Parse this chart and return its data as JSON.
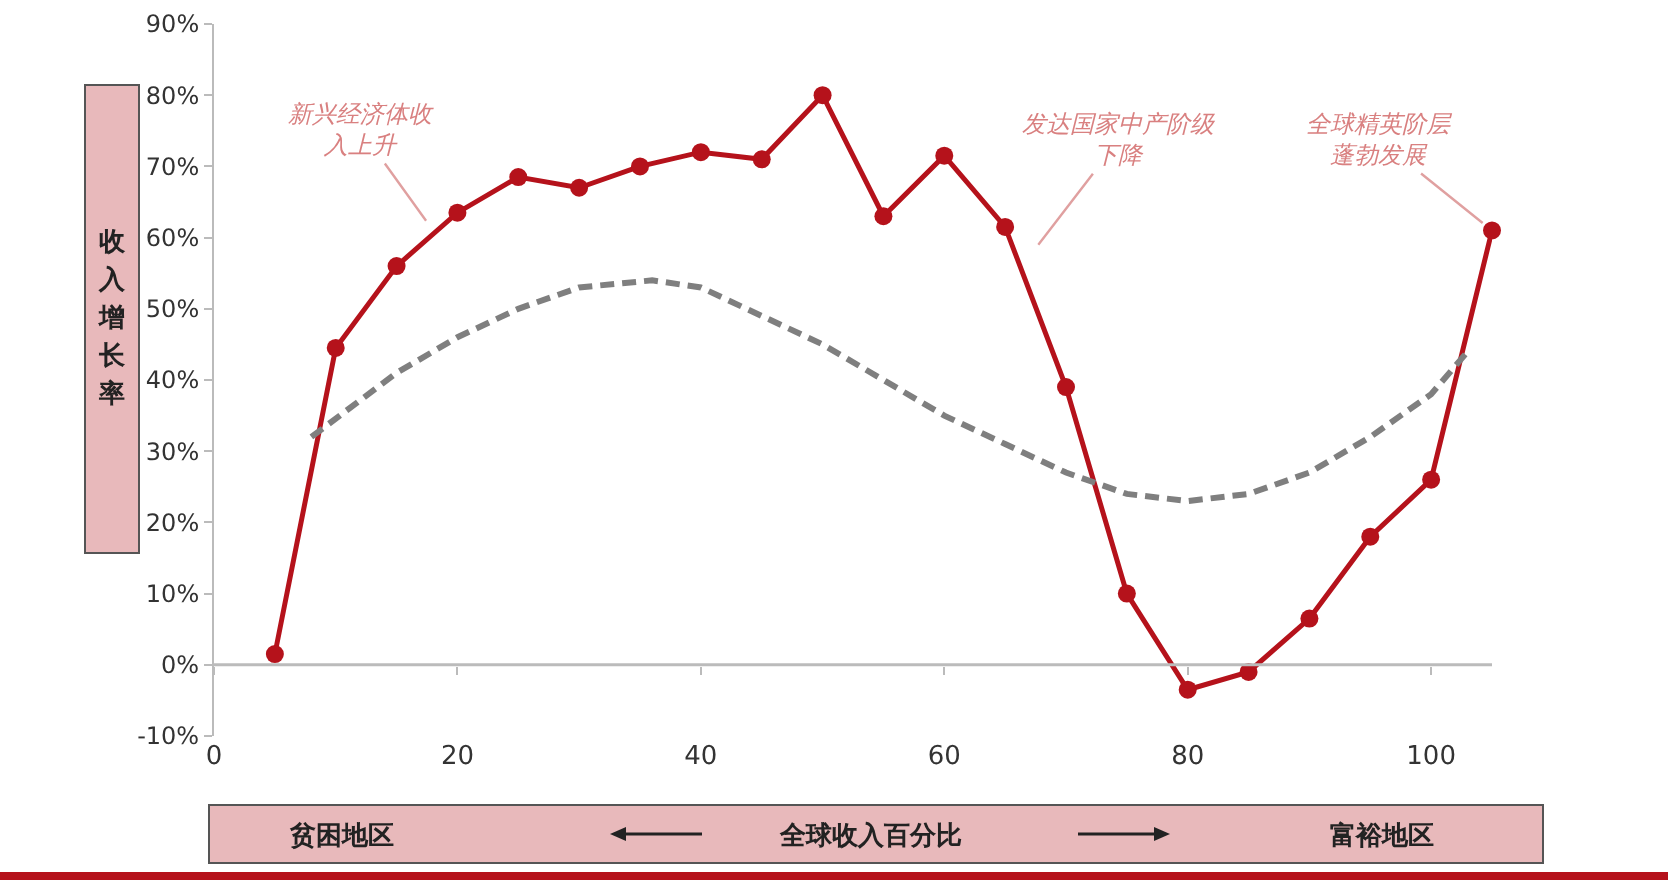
{
  "chart_data": {
    "type": "line",
    "xlabel": "全球收入百分比",
    "ylabel": "收入增长率",
    "x": [
      5,
      10,
      15,
      20,
      25,
      30,
      35,
      40,
      45,
      50,
      55,
      60,
      65,
      70,
      75,
      80,
      85,
      90,
      95,
      100,
      105
    ],
    "series": [
      {
        "color": "#b5121b",
        "marker": "circle",
        "line_style": "solid",
        "values": [
          1.5,
          44.5,
          56,
          63.5,
          68.5,
          67,
          70,
          72,
          71,
          80,
          63,
          71.5,
          61.5,
          39,
          10,
          -3.5,
          -1,
          6.5,
          18,
          26,
          61
        ]
      },
      {
        "type": "line",
        "color": "#7f7f7f",
        "marker": "none",
        "line_style": "dashed",
        "x": [
          8,
          15,
          20,
          25,
          30,
          36,
          40,
          45,
          50,
          55,
          60,
          65,
          70,
          75,
          80,
          85,
          90,
          95,
          100,
          103
        ],
        "values": [
          32,
          41,
          46,
          50,
          53,
          54,
          53,
          49,
          45,
          40,
          35,
          31,
          27,
          24,
          23,
          24,
          27,
          32,
          38,
          44
        ]
      }
    ],
    "xlim": [
      0,
      105
    ],
    "xticks": [
      0,
      20,
      40,
      60,
      80,
      100
    ],
    "ylim": [
      -10,
      90
    ],
    "yticks": [
      {
        "value": -10,
        "label": "-10%"
      },
      {
        "value": 0,
        "label": "0%"
      },
      {
        "value": 10,
        "label": "10%"
      },
      {
        "value": 20,
        "label": "20%"
      },
      {
        "value": 30,
        "label": "30%"
      },
      {
        "value": 40,
        "label": "40%"
      },
      {
        "value": 50,
        "label": "50%"
      },
      {
        "value": 60,
        "label": "60%"
      },
      {
        "value": 70,
        "label": "70%"
      },
      {
        "value": 80,
        "label": "80%"
      },
      {
        "value": 90,
        "label": "90%"
      }
    ],
    "grid": false,
    "annotations": [
      {
        "text": "新兴经济体收入上升",
        "x": 18,
        "y": 61
      },
      {
        "text": "全球精英阶层蓬勃发展",
        "x": 105,
        "y": 61
      },
      "贫困地区",
      "富裕地区",
      "发达国家中产阶级下降"
    ],
    "ref_lines": [
      {
        "axis": "y",
        "value": 0,
        "color": "#bbbbbb"
      }
    ]
  }
}
